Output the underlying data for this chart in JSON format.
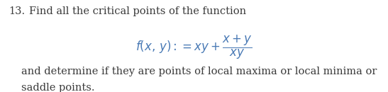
{
  "background_color": "#ffffff",
  "number": "13.",
  "line1": "Find all the critical points of the function",
  "formula_text": "$f(x,\\, y) := xy + \\dfrac{x + y}{xy}$",
  "line2": "and determine if they are points of local maxima or local minima or",
  "line3": "saddle points.",
  "text_color": "#3a3a3a",
  "formula_color": "#4a7ab5",
  "font_size_main": 10.5,
  "font_size_formula": 12,
  "fig_width": 5.47,
  "fig_height": 1.3,
  "dpi": 100
}
